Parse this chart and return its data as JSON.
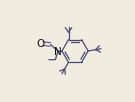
{
  "bg_color": "#f0ece0",
  "line_color": "#4a4a7a",
  "text_color": "#111111",
  "figsize": [
    1.35,
    1.02
  ],
  "dpi": 100
}
